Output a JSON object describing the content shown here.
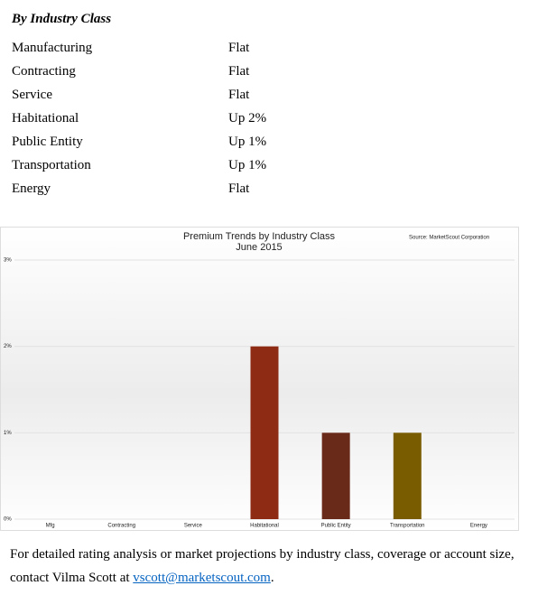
{
  "heading": "By Industry Class",
  "table": {
    "rows": [
      [
        "Manufacturing",
        "Flat"
      ],
      [
        "Contracting",
        "Flat"
      ],
      [
        "Service",
        "Flat"
      ],
      [
        "Habitational",
        "Up 2%"
      ],
      [
        "Public Entity",
        "Up 1%"
      ],
      [
        "Transportation",
        "Up 1%"
      ],
      [
        "Energy",
        "Flat"
      ]
    ]
  },
  "chart_data": {
    "type": "bar",
    "title": "Premium Trends by Industry Class",
    "subtitle": "June 2015",
    "source": "Source: MarketScout Corporation",
    "categories": [
      "Mfg",
      "Contracting",
      "Service",
      "Habitational",
      "Public Entity",
      "Transportation",
      "Energy"
    ],
    "values": [
      0,
      0,
      0,
      2,
      1,
      1,
      0
    ],
    "colors": [
      "#8b2a14",
      "#8b2a14",
      "#8b2a14",
      "#8e2b14",
      "#6a2a1a",
      "#7a5c00",
      "#7a5c00"
    ],
    "ylim": [
      0,
      3
    ],
    "yticks": [
      {
        "value": 0,
        "label": "0%"
      },
      {
        "value": 1,
        "label": "1%"
      },
      {
        "value": 2,
        "label": "2%"
      },
      {
        "value": 3,
        "label": "3%"
      }
    ],
    "grid": true
  },
  "footer": {
    "line1": "For detailed rating analysis or market projections by industry class, coverage or account size,",
    "line2": "contact Vilma Scott at ",
    "link": "vscott@marketscout.com",
    "end": "."
  }
}
